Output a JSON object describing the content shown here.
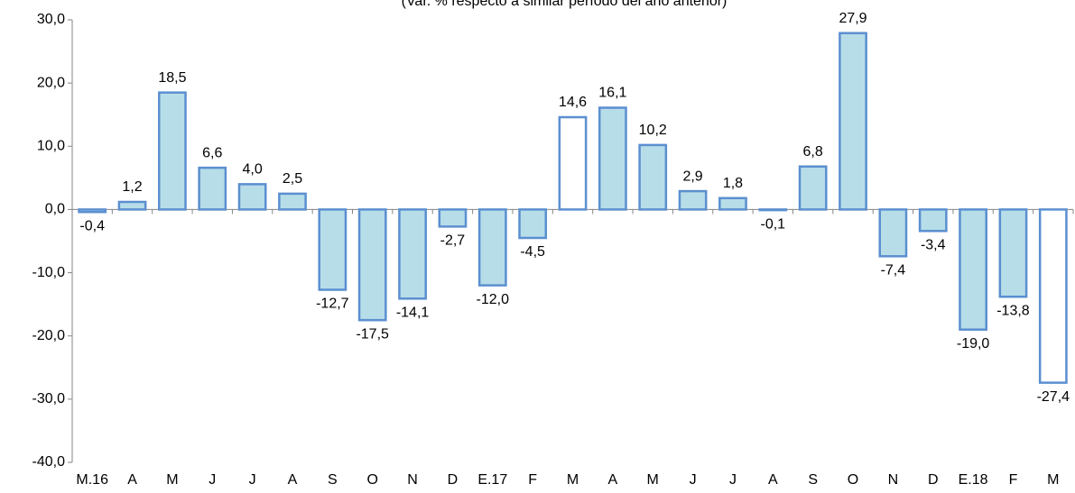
{
  "chart_data": {
    "type": "bar",
    "subtitle": "(Var. % respecto a similar período del año anterior)",
    "categories": [
      "M.16",
      "A",
      "M",
      "J",
      "J",
      "A",
      "S",
      "O",
      "N",
      "D",
      "E.17",
      "F",
      "M",
      "A",
      "M",
      "J",
      "J",
      "A",
      "S",
      "O",
      "N",
      "D",
      "E.18",
      "F",
      "M"
    ],
    "values": [
      -0.4,
      1.2,
      18.5,
      6.6,
      4.0,
      2.5,
      -12.7,
      -17.5,
      -14.1,
      -2.7,
      -12.0,
      -4.5,
      14.6,
      16.1,
      10.2,
      2.9,
      1.8,
      -0.1,
      6.8,
      27.9,
      -7.4,
      -3.4,
      -19.0,
      -13.8,
      -27.4
    ],
    "value_labels": [
      "-0,4",
      "1,2",
      "18,5",
      "6,6",
      "4,0",
      "2,5",
      "-12,7",
      "-17,5",
      "-14,1",
      "-2,7",
      "-12,0",
      "-4,5",
      "14,6",
      "16,1",
      "10,2",
      "2,9",
      "1,8",
      "-0,1",
      "6,8",
      "27,9",
      "-7,4",
      "-3,4",
      "-19,0",
      "-13,8",
      "-27,4"
    ],
    "colors": [
      "#b7dde8",
      "#b7dde8",
      "#b7dde8",
      "#b7dde8",
      "#b7dde8",
      "#b7dde8",
      "#b7dde8",
      "#b7dde8",
      "#b7dde8",
      "#b7dde8",
      "#b7dde8",
      "#b7dde8",
      "#ffffff",
      "#b7dde8",
      "#b7dde8",
      "#b7dde8",
      "#b7dde8",
      "#b7dde8",
      "#b7dde8",
      "#b7dde8",
      "#b7dde8",
      "#b7dde8",
      "#b7dde8",
      "#b7dde8",
      "#ffffff"
    ],
    "edge_color": "#5b8fd0",
    "ylim": [
      -40,
      30
    ],
    "yticks": [
      {
        "value": -40,
        "label": "-40,0"
      },
      {
        "value": -30,
        "label": "-30,0"
      },
      {
        "value": -20,
        "label": "-20,0"
      },
      {
        "value": -10,
        "label": "-10,0"
      },
      {
        "value": 0,
        "label": "0,0"
      },
      {
        "value": 10,
        "label": "10,0"
      },
      {
        "value": 20,
        "label": "20,0"
      },
      {
        "value": 30,
        "label": "30,0"
      }
    ],
    "grid": false
  }
}
